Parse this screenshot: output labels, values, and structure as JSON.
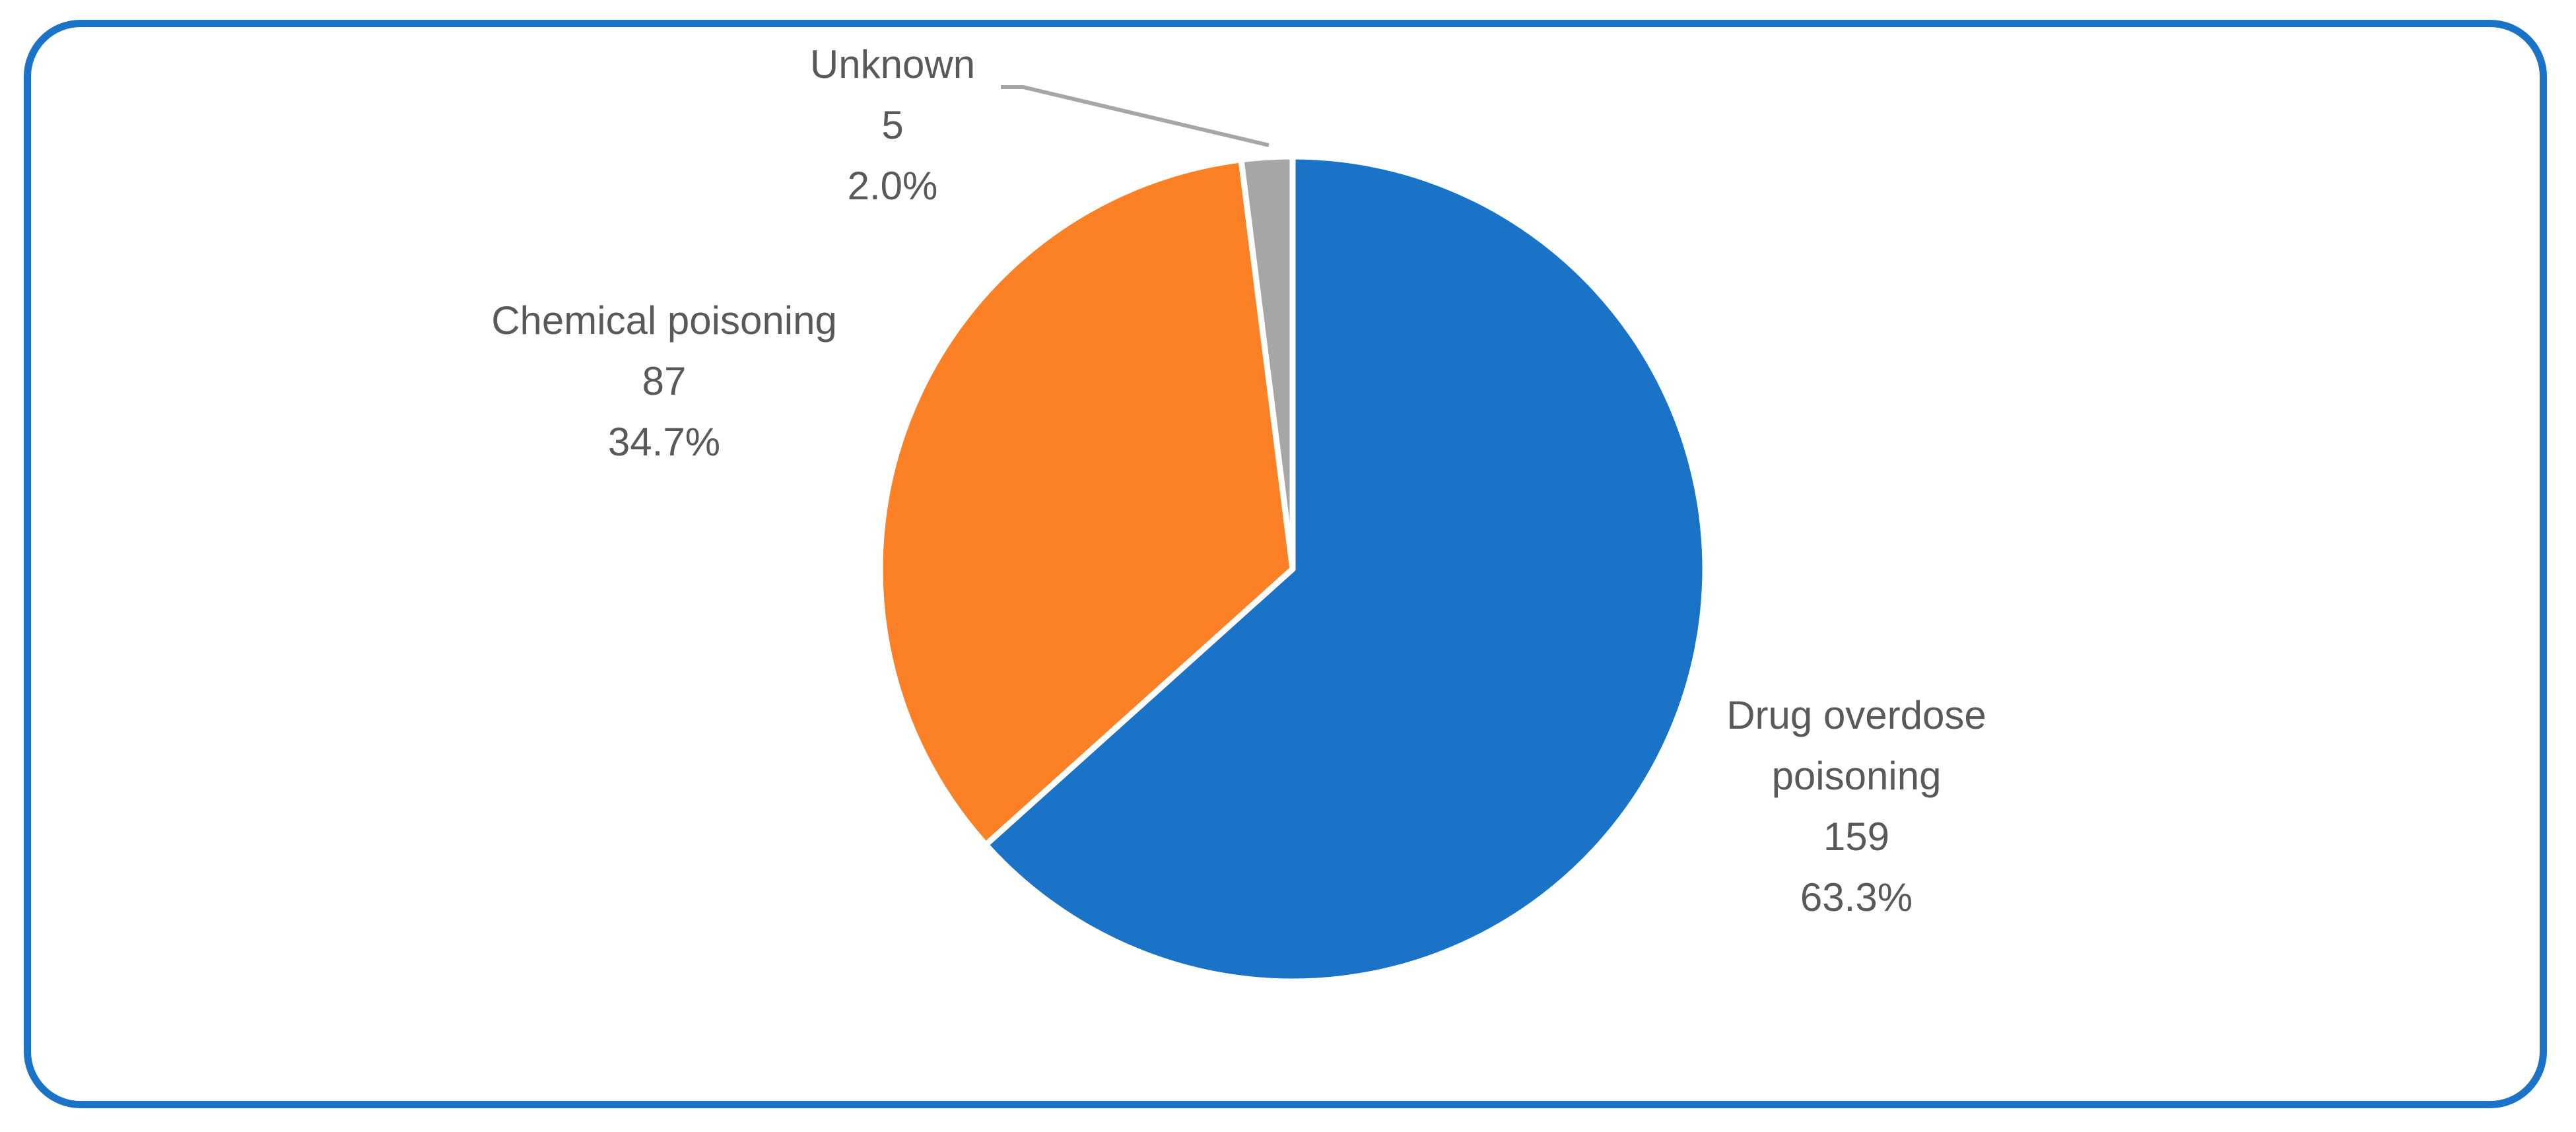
{
  "chart_data": {
    "type": "pie",
    "title": "",
    "slices": [
      {
        "label": "Drug overdose poisoning",
        "label_lines": [
          "Drug overdose",
          "poisoning"
        ],
        "value": 159,
        "percent_text": "63.3%",
        "color": "#1a73c6"
      },
      {
        "label": "Chemical poisoning",
        "label_lines": [
          "Chemical poisoning"
        ],
        "value": 87,
        "percent_text": "34.7%",
        "color": "#fc8025"
      },
      {
        "label": "Unknown",
        "label_lines": [
          "Unknown"
        ],
        "value": 5,
        "percent_text": "2.0%",
        "color": "#a6a6a6"
      }
    ],
    "start_angle_deg": 0,
    "direction": "clockwise",
    "legend": "none",
    "data_labels": "category, value, percentage"
  },
  "colors": {
    "frame_border": "#1a73c6",
    "label_text": "#595959",
    "leader_line": "#a6a6a6"
  }
}
